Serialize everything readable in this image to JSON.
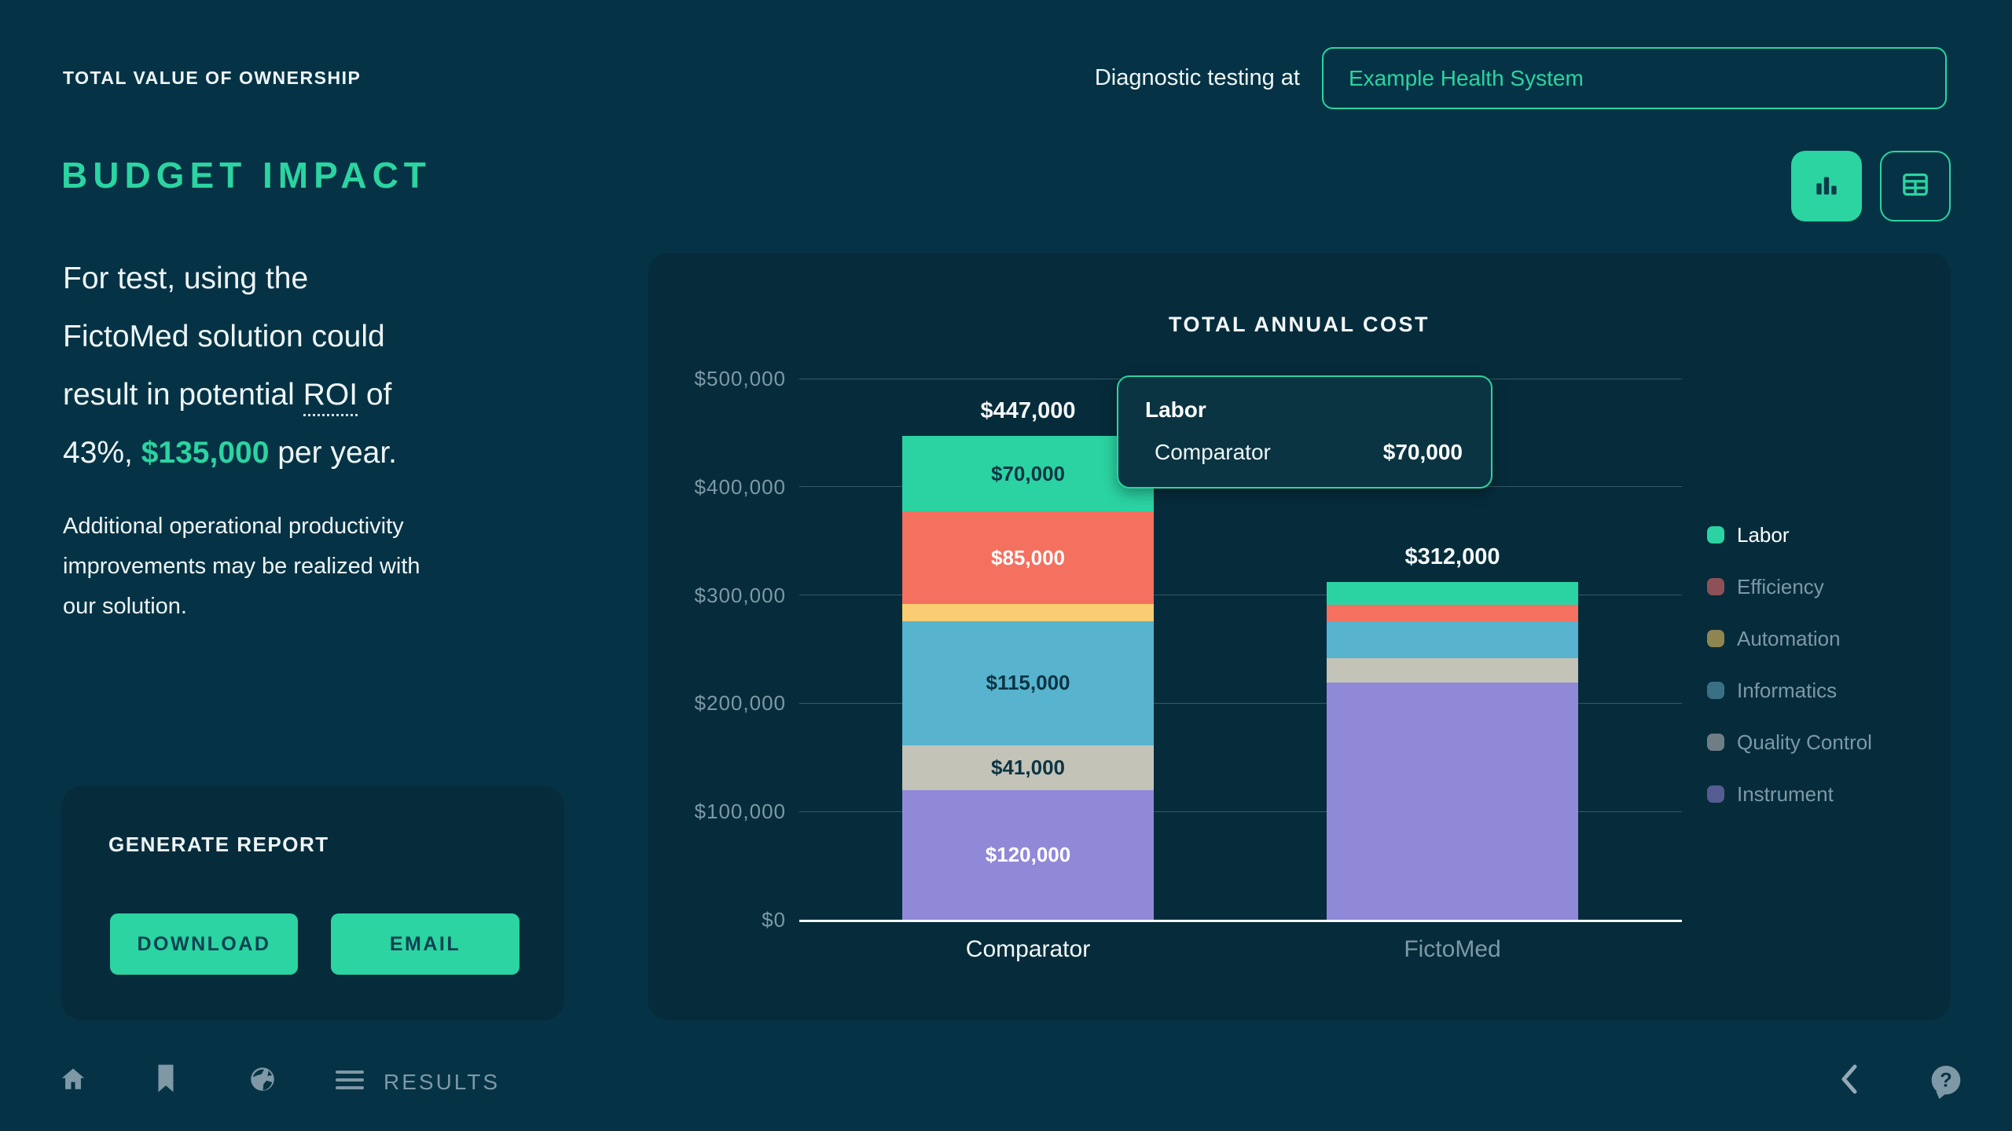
{
  "header": {
    "eyebrow": "TOTAL VALUE OF OWNERSHIP",
    "context_label": "Diagnostic testing at",
    "org_value": "Example Health System",
    "page_title": "BUDGET IMPACT"
  },
  "intro": {
    "line1": "For test, using the",
    "line2": "FictoMed solution could",
    "line3_before": "result in potential ",
    "roi_term": "ROI",
    "line3_after": " of",
    "line4_before": "43%, ",
    "highlight_amount": "$135,000",
    "line4_after": " per year.",
    "secondary_line1": "Additional operational productivity",
    "secondary_line2": "improvements may be realized with",
    "secondary_line3": "our solution."
  },
  "report": {
    "heading": "GENERATE REPORT",
    "download_label": "DOWNLOAD",
    "email_label": "EMAIL"
  },
  "tooltip": {
    "title": "Labor",
    "row_label": "Comparator",
    "row_value": "$70,000"
  },
  "footer": {
    "results_label": "RESULTS"
  },
  "colors": {
    "background": "#053345",
    "card": "#062c3b",
    "accent_green": "#2bd4a1",
    "muted_text": "#7e98a6",
    "dark_label": "#0c3444"
  },
  "chart_data": {
    "type": "bar",
    "stacked": true,
    "title": "TOTAL ANNUAL COST",
    "categories": [
      "Comparator",
      "FictoMed"
    ],
    "category_dimmed": [
      false,
      true
    ],
    "totals_labels": [
      "$447,000",
      "$312,000"
    ],
    "totals_values": [
      447000,
      312000
    ],
    "ylim": [
      0,
      500000
    ],
    "grid": true,
    "legend_position": "right",
    "y_tick_values": [
      0,
      100000,
      200000,
      300000,
      400000,
      500000
    ],
    "y_tick_labels": [
      "$0",
      "$100,000",
      "$200,000",
      "$300,000",
      "$400,000",
      "$500,000"
    ],
    "series": [
      {
        "name": "Labor",
        "color": "#2bd3a2",
        "legend_swatch": "#2bd3a2",
        "legend_active": true,
        "values": [
          70000,
          21000
        ],
        "value_labels": [
          "$70,000",
          ""
        ],
        "label_dark": true
      },
      {
        "name": "Efficiency",
        "color": "#f4705f",
        "legend_swatch": "#8d5157",
        "legend_active": false,
        "values": [
          85000,
          15000
        ],
        "value_labels": [
          "$85,000",
          ""
        ],
        "label_dark": false
      },
      {
        "name": "Automation",
        "color": "#fbcd72",
        "legend_swatch": "#8f8551",
        "legend_active": false,
        "values": [
          16000,
          0
        ],
        "value_labels": [
          "",
          ""
        ],
        "label_dark": true
      },
      {
        "name": "Informatics",
        "color": "#57b3ce",
        "legend_swatch": "#3a7085",
        "legend_active": false,
        "values": [
          115000,
          34000
        ],
        "value_labels": [
          "$115,000",
          ""
        ],
        "label_dark": true
      },
      {
        "name": "Quality Control",
        "color": "#c3c3b8",
        "legend_swatch": "#6f7d85",
        "legend_active": false,
        "values": [
          41000,
          23000
        ],
        "value_labels": [
          "$41,000",
          ""
        ],
        "label_dark": true
      },
      {
        "name": "Instrument",
        "color": "#9089d8",
        "legend_swatch": "#555c91",
        "legend_active": false,
        "values": [
          120000,
          219000
        ],
        "value_labels": [
          "$120,000",
          ""
        ],
        "label_dark": false
      }
    ]
  }
}
